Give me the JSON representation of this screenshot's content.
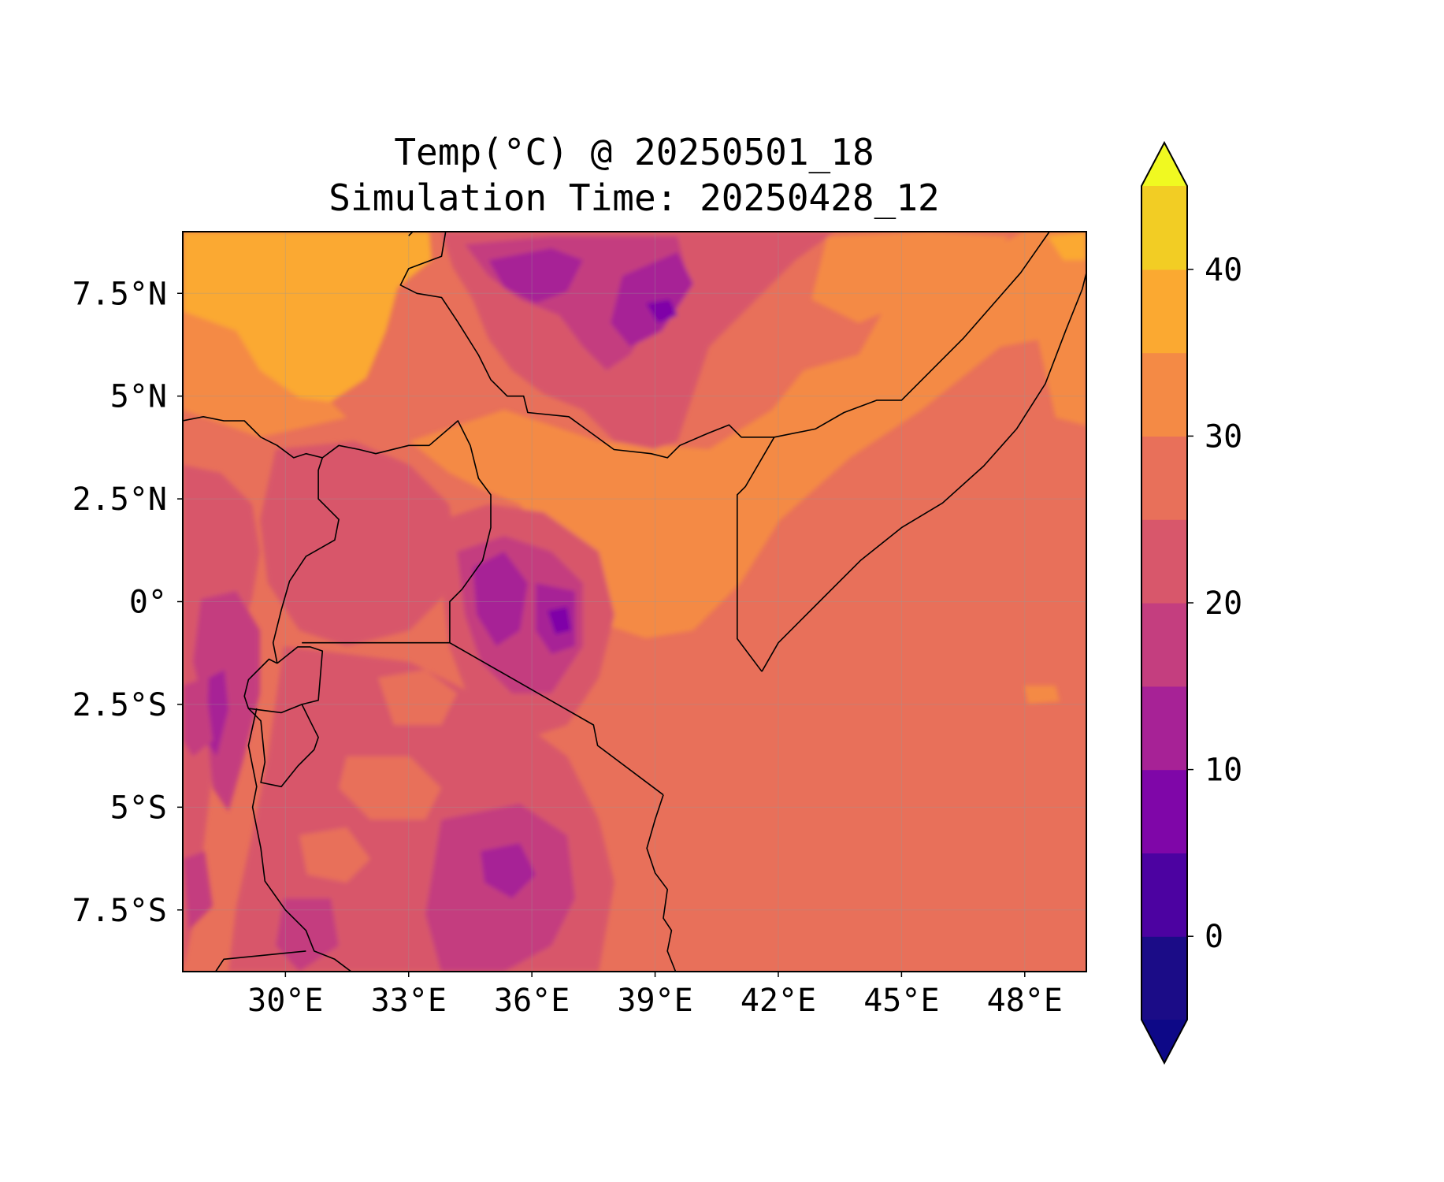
{
  "title": {
    "line1": "Temp(°C) @ 20250501_18",
    "line2": "Simulation Time: 20250428_12"
  },
  "map": {
    "extent_lon": [
      27.5,
      49.5
    ],
    "extent_lat": [
      -9,
      9
    ],
    "lon_ticks": [
      {
        "value": 30,
        "label": "30°E"
      },
      {
        "value": 33,
        "label": "33°E"
      },
      {
        "value": 36,
        "label": "36°E"
      },
      {
        "value": 39,
        "label": "39°E"
      },
      {
        "value": 42,
        "label": "42°E"
      },
      {
        "value": 45,
        "label": "45°E"
      },
      {
        "value": 48,
        "label": "48°E"
      }
    ],
    "lat_ticks": [
      {
        "value": 7.5,
        "label": "7.5°N"
      },
      {
        "value": 5,
        "label": "5°N"
      },
      {
        "value": 2.5,
        "label": "2.5°N"
      },
      {
        "value": 0,
        "label": "0°"
      },
      {
        "value": -2.5,
        "label": "2.5°S"
      },
      {
        "value": -5,
        "label": "5°S"
      },
      {
        "value": -7.5,
        "label": "7.5°S"
      }
    ],
    "gridlines": true,
    "borders": [
      [
        [
          33.9,
          9.0
        ],
        [
          33.8,
          8.4
        ],
        [
          33.0,
          8.1
        ],
        [
          32.8,
          7.7
        ],
        [
          33.2,
          7.5
        ],
        [
          33.8,
          7.4
        ],
        [
          34.2,
          6.8
        ],
        [
          34.7,
          6.0
        ],
        [
          35.0,
          5.4
        ],
        [
          35.4,
          5.0
        ],
        [
          35.8,
          5.0
        ],
        [
          35.9,
          4.6
        ],
        [
          36.9,
          4.5
        ],
        [
          38.0,
          3.7
        ],
        [
          38.9,
          3.6
        ],
        [
          39.3,
          3.5
        ],
        [
          39.6,
          3.8
        ],
        [
          40.3,
          4.1
        ],
        [
          40.8,
          4.3
        ],
        [
          41.1,
          4.0
        ],
        [
          41.9,
          4.0
        ],
        [
          42.9,
          4.2
        ],
        [
          43.6,
          4.6
        ],
        [
          44.4,
          4.9
        ],
        [
          45.0,
          4.9
        ],
        [
          46.5,
          6.4
        ],
        [
          47.9,
          8.0
        ],
        [
          48.6,
          9.0
        ]
      ],
      [
        [
          41.9,
          4.0
        ],
        [
          41.2,
          2.8
        ],
        [
          41.0,
          2.6
        ],
        [
          41.0,
          -0.9
        ],
        [
          41.6,
          -1.7
        ]
      ],
      [
        [
          34.0,
          -1.0
        ],
        [
          37.5,
          -3.0
        ],
        [
          37.6,
          -3.5
        ],
        [
          39.2,
          -4.7
        ]
      ],
      [
        [
          30.4,
          -1.0
        ],
        [
          34.0,
          -1.0
        ],
        [
          34.0,
          0.0
        ],
        [
          34.3,
          0.3
        ],
        [
          34.8,
          1.0
        ],
        [
          35.0,
          1.8
        ],
        [
          35.0,
          2.6
        ],
        [
          34.7,
          3.0
        ],
        [
          34.5,
          3.8
        ],
        [
          34.2,
          4.4
        ],
        [
          33.5,
          3.8
        ],
        [
          33.0,
          3.8
        ],
        [
          32.2,
          3.6
        ],
        [
          31.8,
          3.7
        ],
        [
          31.3,
          3.8
        ],
        [
          30.9,
          3.5
        ],
        [
          30.8,
          3.2
        ],
        [
          30.8,
          2.5
        ],
        [
          31.3,
          2.0
        ],
        [
          31.2,
          1.5
        ],
        [
          30.5,
          1.1
        ],
        [
          30.1,
          0.5
        ],
        [
          29.9,
          -0.2
        ],
        [
          29.7,
          -1.0
        ],
        [
          29.8,
          -1.5
        ]
      ],
      [
        [
          27.5,
          4.4
        ],
        [
          28.0,
          4.5
        ],
        [
          28.5,
          4.4
        ],
        [
          29.0,
          4.4
        ],
        [
          29.4,
          4.0
        ],
        [
          29.8,
          3.8
        ],
        [
          30.2,
          3.5
        ],
        [
          30.5,
          3.6
        ],
        [
          30.9,
          3.5
        ]
      ],
      [
        [
          33.0,
          8.9
        ],
        [
          33.1,
          9.0
        ]
      ],
      [
        [
          29.8,
          -1.5
        ],
        [
          30.3,
          -1.1
        ],
        [
          30.6,
          -1.1
        ],
        [
          30.9,
          -1.2
        ],
        [
          30.8,
          -2.4
        ],
        [
          30.4,
          -2.5
        ],
        [
          29.9,
          -2.7
        ],
        [
          29.1,
          -2.6
        ],
        [
          29.0,
          -2.3
        ],
        [
          29.1,
          -1.9
        ],
        [
          29.6,
          -1.4
        ],
        [
          29.8,
          -1.5
        ]
      ],
      [
        [
          29.1,
          -2.6
        ],
        [
          29.4,
          -2.9
        ],
        [
          29.5,
          -3.9
        ],
        [
          29.4,
          -4.4
        ],
        [
          29.9,
          -4.5
        ],
        [
          30.3,
          -4.0
        ],
        [
          30.7,
          -3.6
        ],
        [
          30.8,
          -3.3
        ],
        [
          30.6,
          -2.9
        ],
        [
          30.4,
          -2.5
        ]
      ],
      [
        [
          29.3,
          -2.6
        ],
        [
          29.1,
          -3.5
        ],
        [
          29.3,
          -4.5
        ],
        [
          29.2,
          -5.0
        ],
        [
          29.4,
          -6.0
        ],
        [
          29.5,
          -6.8
        ],
        [
          30.0,
          -7.5
        ],
        [
          30.5,
          -8.0
        ],
        [
          30.7,
          -8.5
        ],
        [
          31.2,
          -8.7
        ],
        [
          31.6,
          -9.0
        ]
      ],
      [
        [
          28.3,
          -9.0
        ],
        [
          28.5,
          -8.7
        ],
        [
          30.5,
          -8.5
        ]
      ],
      [
        [
          39.2,
          -4.7
        ],
        [
          39.0,
          -5.3
        ],
        [
          38.8,
          -6.0
        ],
        [
          39.0,
          -6.6
        ],
        [
          39.3,
          -7.0
        ],
        [
          39.2,
          -7.7
        ],
        [
          39.4,
          -8.0
        ],
        [
          39.3,
          -8.5
        ],
        [
          39.5,
          -9.0
        ]
      ],
      [
        [
          41.6,
          -1.7
        ],
        [
          42.0,
          -1.0
        ],
        [
          43.0,
          0.0
        ],
        [
          44.0,
          1.0
        ],
        [
          45.0,
          1.8
        ],
        [
          46.0,
          2.4
        ],
        [
          47.0,
          3.3
        ],
        [
          47.8,
          4.2
        ],
        [
          48.5,
          5.3
        ],
        [
          49.0,
          6.6
        ],
        [
          49.4,
          7.6
        ],
        [
          49.5,
          8.0
        ]
      ]
    ]
  },
  "colorbar": {
    "levels": [
      -5,
      0,
      5,
      10,
      15,
      20,
      25,
      30,
      35,
      40,
      45
    ],
    "colors": [
      "#1b0c87",
      "#4c02a1",
      "#7f06a8",
      "#a72296",
      "#c43e7f",
      "#d8576b",
      "#e8705a",
      "#f48a45",
      "#fba931",
      "#f2cd24"
    ],
    "under_color": "#0d0887",
    "over_color": "#f0f921",
    "ticks": [
      {
        "value": 0,
        "label": "0"
      },
      {
        "value": 10,
        "label": "10"
      },
      {
        "value": 20,
        "label": "20"
      },
      {
        "value": 30,
        "label": "30"
      },
      {
        "value": 40,
        "label": "40"
      }
    ],
    "extend": "both"
  },
  "colors": {
    "background": "#e8705a",
    "highlands_mid": "#d8576b",
    "highlands_cool": "#c43e7f",
    "highlands_cold": "#a72296",
    "warm": "#f48a45",
    "hot": "#fba931"
  }
}
